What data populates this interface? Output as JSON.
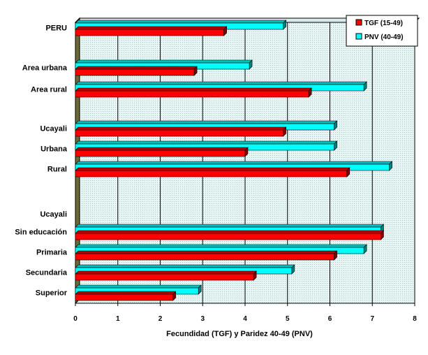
{
  "chart_data": {
    "type": "bar",
    "orientation": "horizontal",
    "xlabel": "Fecundidad (TGF) y Paridez 40-49 (PNV)",
    "xlim": [
      0,
      8
    ],
    "xticks": [
      "0",
      "1",
      "2",
      "3",
      "4",
      "5",
      "6",
      "7",
      "8"
    ],
    "categories": [
      "PERU",
      "",
      "Area urbana",
      "Area rural",
      "",
      "Ucayali",
      "Urbana",
      "Rural",
      "",
      "Ucayali",
      "Sin educación",
      "Primaria",
      "Secundaria",
      "Superior"
    ],
    "series": [
      {
        "name": "PNV (40-49)",
        "color": "#00ffff",
        "values": [
          4.9,
          null,
          4.1,
          6.8,
          null,
          6.1,
          6.1,
          7.4,
          null,
          null,
          7.2,
          6.8,
          5.1,
          2.9
        ]
      },
      {
        "name": "TGF (15-49)",
        "color": "#ff0000",
        "values": [
          3.5,
          null,
          2.8,
          5.5,
          null,
          4.9,
          4.0,
          6.4,
          null,
          null,
          7.2,
          6.1,
          4.2,
          2.3
        ]
      }
    ],
    "legend": {
      "position": "top-right",
      "entries": [
        {
          "label": "TGF (15-49)",
          "color": "#ff0000"
        },
        {
          "label": "PNV (40-49)",
          "color": "#00ffff"
        }
      ]
    },
    "grid": true
  }
}
